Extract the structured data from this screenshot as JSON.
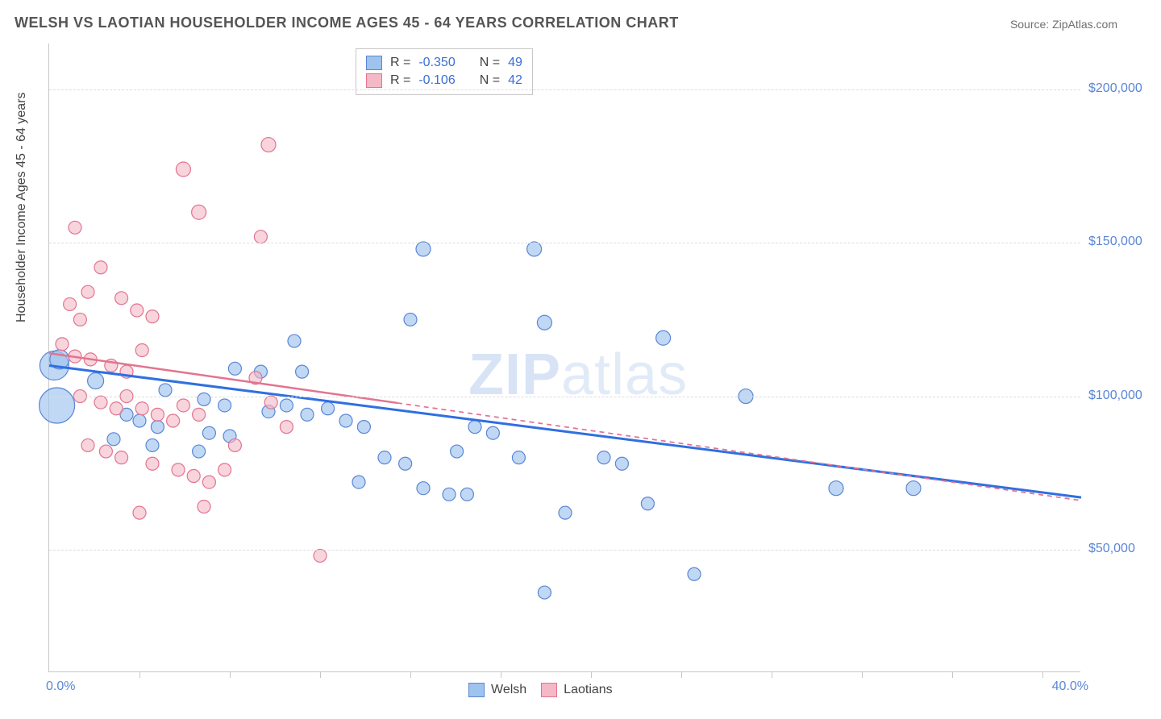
{
  "title": "WELSH VS LAOTIAN HOUSEHOLDER INCOME AGES 45 - 64 YEARS CORRELATION CHART",
  "source": "Source: ZipAtlas.com",
  "watermark": {
    "bold": "ZIP",
    "thin": "atlas"
  },
  "chart": {
    "type": "scatter",
    "x_range": [
      0,
      40
    ],
    "y_range": [
      10000,
      215000
    ],
    "y_gridlines": [
      50000,
      100000,
      150000,
      200000
    ],
    "y_tick_labels": [
      "$50,000",
      "$100,000",
      "$150,000",
      "$200,000"
    ],
    "x_ticks": [
      3.5,
      7,
      10.5,
      14,
      17.5,
      21,
      24.5,
      28,
      31.5,
      35,
      38.5
    ],
    "x_origin_label": "0.0%",
    "x_end_label": "40.0%",
    "ylabel": "Householder Income Ages 45 - 64 years",
    "grid_color": "#dcdcdc",
    "axis_color": "#c7c7c7",
    "background": "#ffffff",
    "label_color": "#5b86d6",
    "series": [
      {
        "name": "Welsh",
        "fill": "#9ec3ee",
        "stroke": "#5b86d6",
        "opacity": 0.65,
        "R": "-0.350",
        "N": "49",
        "trend": {
          "x1": 0,
          "y1": 110000,
          "x2": 40,
          "y2": 67000,
          "solid_until_x": 40,
          "color": "#2f6fe2",
          "width": 3
        },
        "points": [
          {
            "x": 0.2,
            "y": 110000,
            "r": 18
          },
          {
            "x": 0.3,
            "y": 97000,
            "r": 22
          },
          {
            "x": 0.4,
            "y": 112000,
            "r": 12
          },
          {
            "x": 14.5,
            "y": 148000,
            "r": 9
          },
          {
            "x": 18.8,
            "y": 148000,
            "r": 9
          },
          {
            "x": 9.5,
            "y": 118000,
            "r": 8
          },
          {
            "x": 14.0,
            "y": 125000,
            "r": 8
          },
          {
            "x": 19.2,
            "y": 124000,
            "r": 9
          },
          {
            "x": 23.8,
            "y": 119000,
            "r": 9
          },
          {
            "x": 7.2,
            "y": 109000,
            "r": 8
          },
          {
            "x": 8.2,
            "y": 108000,
            "r": 8
          },
          {
            "x": 9.8,
            "y": 108000,
            "r": 8
          },
          {
            "x": 4.5,
            "y": 102000,
            "r": 8
          },
          {
            "x": 6.0,
            "y": 99000,
            "r": 8
          },
          {
            "x": 6.8,
            "y": 97000,
            "r": 8
          },
          {
            "x": 8.5,
            "y": 95000,
            "r": 8
          },
          {
            "x": 9.2,
            "y": 97000,
            "r": 8
          },
          {
            "x": 10.0,
            "y": 94000,
            "r": 8
          },
          {
            "x": 10.8,
            "y": 96000,
            "r": 8
          },
          {
            "x": 11.5,
            "y": 92000,
            "r": 8
          },
          {
            "x": 12.2,
            "y": 90000,
            "r": 8
          },
          {
            "x": 27.0,
            "y": 100000,
            "r": 9
          },
          {
            "x": 3.0,
            "y": 94000,
            "r": 8
          },
          {
            "x": 3.5,
            "y": 92000,
            "r": 8
          },
          {
            "x": 4.2,
            "y": 90000,
            "r": 8
          },
          {
            "x": 6.2,
            "y": 88000,
            "r": 8
          },
          {
            "x": 7.0,
            "y": 87000,
            "r": 8
          },
          {
            "x": 13.0,
            "y": 80000,
            "r": 8
          },
          {
            "x": 13.8,
            "y": 78000,
            "r": 8
          },
          {
            "x": 15.8,
            "y": 82000,
            "r": 8
          },
          {
            "x": 16.5,
            "y": 90000,
            "r": 8
          },
          {
            "x": 17.2,
            "y": 88000,
            "r": 8
          },
          {
            "x": 18.2,
            "y": 80000,
            "r": 8
          },
          {
            "x": 14.5,
            "y": 70000,
            "r": 8
          },
          {
            "x": 15.5,
            "y": 68000,
            "r": 8
          },
          {
            "x": 16.2,
            "y": 68000,
            "r": 8
          },
          {
            "x": 12.0,
            "y": 72000,
            "r": 8
          },
          {
            "x": 20.0,
            "y": 62000,
            "r": 8
          },
          {
            "x": 23.2,
            "y": 65000,
            "r": 8
          },
          {
            "x": 21.5,
            "y": 80000,
            "r": 8
          },
          {
            "x": 22.2,
            "y": 78000,
            "r": 8
          },
          {
            "x": 30.5,
            "y": 70000,
            "r": 9
          },
          {
            "x": 33.5,
            "y": 70000,
            "r": 9
          },
          {
            "x": 25.0,
            "y": 42000,
            "r": 8
          },
          {
            "x": 19.2,
            "y": 36000,
            "r": 8
          },
          {
            "x": 5.8,
            "y": 82000,
            "r": 8
          },
          {
            "x": 4.0,
            "y": 84000,
            "r": 8
          },
          {
            "x": 2.5,
            "y": 86000,
            "r": 8
          },
          {
            "x": 1.8,
            "y": 105000,
            "r": 10
          }
        ]
      },
      {
        "name": "Laotians",
        "fill": "#f4b8c6",
        "stroke": "#e3738f",
        "opacity": 0.6,
        "R": "-0.106",
        "N": "42",
        "trend": {
          "x1": 0,
          "y1": 114000,
          "x2": 40,
          "y2": 66000,
          "solid_until_x": 13.5,
          "color": "#e3738f",
          "width": 2.5
        },
        "points": [
          {
            "x": 8.5,
            "y": 182000,
            "r": 9
          },
          {
            "x": 5.2,
            "y": 174000,
            "r": 9
          },
          {
            "x": 5.8,
            "y": 160000,
            "r": 9
          },
          {
            "x": 8.2,
            "y": 152000,
            "r": 8
          },
          {
            "x": 1.0,
            "y": 155000,
            "r": 8
          },
          {
            "x": 2.0,
            "y": 142000,
            "r": 8
          },
          {
            "x": 1.5,
            "y": 134000,
            "r": 8
          },
          {
            "x": 0.8,
            "y": 130000,
            "r": 8
          },
          {
            "x": 1.2,
            "y": 125000,
            "r": 8
          },
          {
            "x": 2.8,
            "y": 132000,
            "r": 8
          },
          {
            "x": 3.4,
            "y": 128000,
            "r": 8
          },
          {
            "x": 4.0,
            "y": 126000,
            "r": 8
          },
          {
            "x": 0.5,
            "y": 117000,
            "r": 8
          },
          {
            "x": 1.0,
            "y": 113000,
            "r": 8
          },
          {
            "x": 1.6,
            "y": 112000,
            "r": 8
          },
          {
            "x": 2.4,
            "y": 110000,
            "r": 8
          },
          {
            "x": 3.0,
            "y": 108000,
            "r": 8
          },
          {
            "x": 3.6,
            "y": 115000,
            "r": 8
          },
          {
            "x": 1.2,
            "y": 100000,
            "r": 8
          },
          {
            "x": 2.0,
            "y": 98000,
            "r": 8
          },
          {
            "x": 2.6,
            "y": 96000,
            "r": 8
          },
          {
            "x": 3.0,
            "y": 100000,
            "r": 8
          },
          {
            "x": 3.6,
            "y": 96000,
            "r": 8
          },
          {
            "x": 4.2,
            "y": 94000,
            "r": 8
          },
          {
            "x": 4.8,
            "y": 92000,
            "r": 8
          },
          {
            "x": 5.2,
            "y": 97000,
            "r": 8
          },
          {
            "x": 5.8,
            "y": 94000,
            "r": 8
          },
          {
            "x": 1.5,
            "y": 84000,
            "r": 8
          },
          {
            "x": 2.2,
            "y": 82000,
            "r": 8
          },
          {
            "x": 2.8,
            "y": 80000,
            "r": 8
          },
          {
            "x": 4.0,
            "y": 78000,
            "r": 8
          },
          {
            "x": 5.0,
            "y": 76000,
            "r": 8
          },
          {
            "x": 5.6,
            "y": 74000,
            "r": 8
          },
          {
            "x": 6.2,
            "y": 72000,
            "r": 8
          },
          {
            "x": 6.8,
            "y": 76000,
            "r": 8
          },
          {
            "x": 7.2,
            "y": 84000,
            "r": 8
          },
          {
            "x": 3.5,
            "y": 62000,
            "r": 8
          },
          {
            "x": 6.0,
            "y": 64000,
            "r": 8
          },
          {
            "x": 10.5,
            "y": 48000,
            "r": 8
          },
          {
            "x": 8.0,
            "y": 106000,
            "r": 8
          },
          {
            "x": 8.6,
            "y": 98000,
            "r": 8
          },
          {
            "x": 9.2,
            "y": 90000,
            "r": 8
          }
        ]
      }
    ],
    "top_legend_labels": {
      "R": "R =",
      "N": "N ="
    },
    "bottom_legend": [
      "Welsh",
      "Laotians"
    ]
  }
}
